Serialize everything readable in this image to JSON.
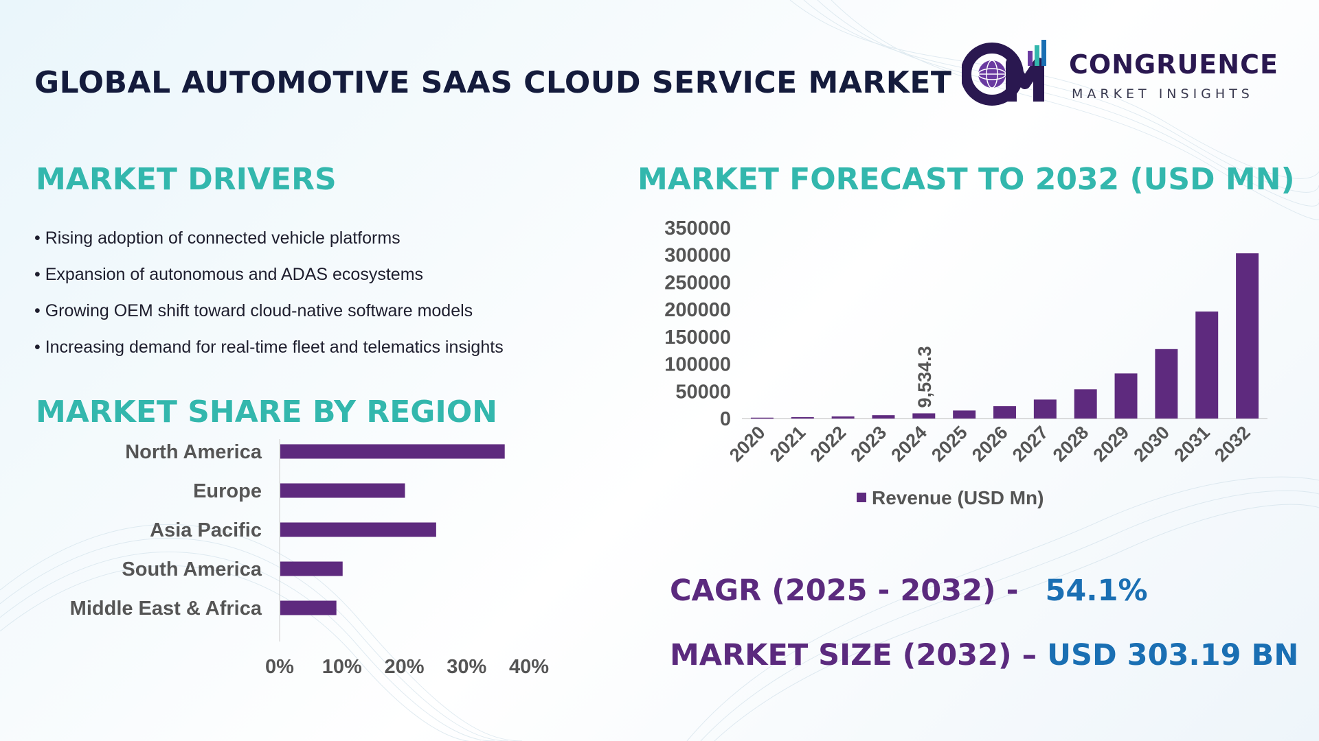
{
  "title": "GLOBAL AUTOMOTIVE SAAS CLOUD SERVICE MARKET",
  "logo": {
    "name": "CONGRUENCE",
    "subtitle": "MARKET INSIGHTS"
  },
  "drivers": {
    "title": "MARKET DRIVERS",
    "items": [
      "• Rising adoption of connected vehicle platforms",
      "• Expansion of autonomous and ADAS ecosystems",
      "• Growing OEM shift toward cloud-native software models",
      "• Increasing demand for real-time fleet and telematics insights"
    ]
  },
  "forecast": {
    "title": "MARKET FORECAST TO 2032 (USD MN)"
  },
  "region": {
    "title": "MARKET SHARE BY REGION"
  },
  "kpis": {
    "cagr_label": "CAGR (2025 - 2032) -",
    "cagr_value": "54.1%",
    "size_label": "MARKET SIZE (2032) –",
    "size_value": "USD 303.19 BN"
  },
  "colors": {
    "bar": "#5e2a7e",
    "accent": "#33b7ad",
    "kpi_label": "#5b2a7e",
    "kpi_value": "#1a6fb3"
  },
  "chart_data": [
    {
      "type": "bar",
      "categories": [
        "2020",
        "2021",
        "2022",
        "2023",
        "2024",
        "2025",
        "2026",
        "2027",
        "2028",
        "2029",
        "2030",
        "2031",
        "2032"
      ],
      "series": [
        {
          "name": "Revenue (USD Mn)",
          "values": [
            1600,
            2500,
            3900,
            6100,
            9534.3,
            14700,
            22600,
            34800,
            53700,
            82700,
            127400,
            196300,
            303190
          ]
        }
      ],
      "data_labels": [
        {
          "category": "2024",
          "text": "9,534.3"
        }
      ],
      "yticks": [
        "350000",
        "300000",
        "250000",
        "200000",
        "150000",
        "100000",
        "50000",
        "0"
      ],
      "ylim": [
        0,
        350000
      ],
      "legend": "bottom",
      "grid": false
    },
    {
      "type": "bar",
      "orientation": "horizontal",
      "categories": [
        "North America",
        "Europe",
        "Asia Pacific",
        "South America",
        "Middle East & Africa"
      ],
      "values": [
        0.36,
        0.2,
        0.25,
        0.1,
        0.09
      ],
      "xticks": [
        "0%",
        "10%",
        "20%",
        "30%",
        "40%"
      ],
      "xlim": [
        0,
        0.4
      ],
      "grid": false
    }
  ]
}
